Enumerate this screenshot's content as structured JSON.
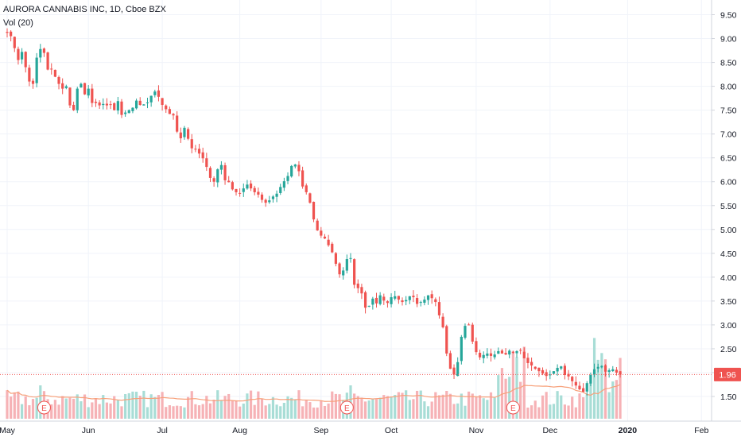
{
  "legend": {
    "symbol_line": "AURORA CANNABIS INC, 1D, Cboe BZX",
    "volume_line": "Vol (20)"
  },
  "price_badge": "1.96",
  "colors": {
    "up": "#26a69a",
    "down": "#ef5350",
    "up_volume": "#a8ddd6",
    "down_volume": "#f6b2b6",
    "volume_ma": "#f7a07a",
    "grid": "#f0f3fa",
    "last_price_line": "#ef5350",
    "earnings_marker": "#ef5350"
  },
  "chart_data": {
    "type": "candlestick",
    "y_axis": {
      "ticks": [
        "9.50",
        "9.00",
        "8.50",
        "8.00",
        "7.50",
        "7.00",
        "6.50",
        "6.00",
        "5.50",
        "5.00",
        "4.50",
        "4.00",
        "3.50",
        "3.00",
        "2.50",
        "2.00",
        "1.50"
      ],
      "range": [
        1.05,
        9.6
      ],
      "position": "right"
    },
    "x_axis": {
      "ticks": [
        {
          "label": "May",
          "index": 0
        },
        {
          "label": "Jun",
          "index": 22
        },
        {
          "label": "Jul",
          "index": 42
        },
        {
          "label": "Aug",
          "index": 63
        },
        {
          "label": "Sep",
          "index": 85
        },
        {
          "label": "Oct",
          "index": 104
        },
        {
          "label": "Nov",
          "index": 127
        },
        {
          "label": "Dec",
          "index": 147
        },
        {
          "label": "2020",
          "index": 168
        },
        {
          "label": "Feb",
          "index": 188
        }
      ]
    },
    "last_price": 1.96,
    "earnings_markers": [
      {
        "label": "E",
        "index": 10
      },
      {
        "label": "E",
        "index": 92
      },
      {
        "label": "E",
        "index": 137
      }
    ],
    "close": [
      9.12,
      9.05,
      8.8,
      8.55,
      8.72,
      8.4,
      8.1,
      8.05,
      8.6,
      8.78,
      8.7,
      8.35,
      8.36,
      8.2,
      8.05,
      7.95,
      8.0,
      7.6,
      7.5,
      7.95,
      8.05,
      7.83,
      7.95,
      7.65,
      7.65,
      7.6,
      7.63,
      7.6,
      7.62,
      7.5,
      7.69,
      7.4,
      7.45,
      7.5,
      7.55,
      7.7,
      7.61,
      7.62,
      7.66,
      7.8,
      7.89,
      7.78,
      7.61,
      7.52,
      7.42,
      7.39,
      7.05,
      6.91,
      7.13,
      6.9,
      6.7,
      6.68,
      6.59,
      6.49,
      6.31,
      6.08,
      6.0,
      6.26,
      6.35,
      6.03,
      5.99,
      5.84,
      5.78,
      5.76,
      5.86,
      5.94,
      5.86,
      5.78,
      5.73,
      5.62,
      5.56,
      5.61,
      5.69,
      5.75,
      5.89,
      6.01,
      6.12,
      6.33,
      6.36,
      6.22,
      5.9,
      5.78,
      5.56,
      5.21,
      4.98,
      4.87,
      4.81,
      4.67,
      4.52,
      4.28,
      4.06,
      4.14,
      4.38,
      4.4,
      3.84,
      3.77,
      3.66,
      3.36,
      3.4,
      3.55,
      3.45,
      3.62,
      3.51,
      3.46,
      3.58,
      3.6,
      3.53,
      3.48,
      3.52,
      3.6,
      3.58,
      3.44,
      3.48,
      3.53,
      3.62,
      3.56,
      3.48,
      3.2,
      2.95,
      2.4,
      2.08,
      1.96,
      2.22,
      2.75,
      2.98,
      3.0,
      2.65,
      2.43,
      2.32,
      2.37,
      2.4,
      2.35,
      2.38,
      2.45,
      2.4,
      2.38,
      2.46,
      2.43,
      2.45,
      2.46,
      2.3,
      2.2,
      2.15,
      2.08,
      2.03,
      1.98,
      1.93,
      1.96,
      2.03,
      2.1,
      2.13,
      1.95,
      1.92,
      1.82,
      1.73,
      1.65,
      1.6,
      1.78,
      1.95,
      2.07,
      2.12,
      2.14,
      2.02,
      2.05,
      2.07,
      2.0,
      1.96
    ]
  }
}
